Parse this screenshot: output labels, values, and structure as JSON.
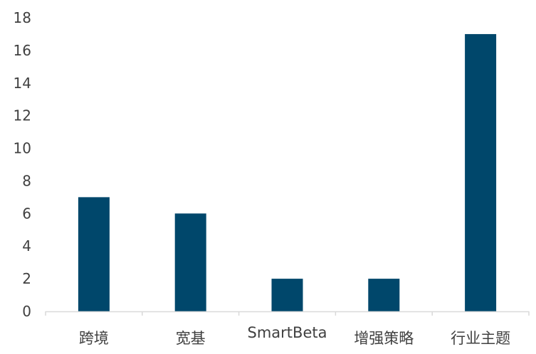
{
  "chart_data": {
    "type": "bar",
    "title": "",
    "xlabel": "",
    "ylabel": "",
    "categories": [
      "跨境",
      "宽基",
      "SmartBeta",
      "增强策略",
      "行业主题"
    ],
    "values": [
      7,
      6,
      2,
      2,
      17
    ],
    "ylim": [
      0,
      18
    ],
    "yticks": [
      0,
      2,
      4,
      6,
      8,
      10,
      12,
      14,
      16,
      18
    ],
    "grid": false,
    "legend": "none",
    "colors": {
      "bar": "#00476B",
      "axis": "#D9D9D9",
      "text": "#404040"
    }
  }
}
